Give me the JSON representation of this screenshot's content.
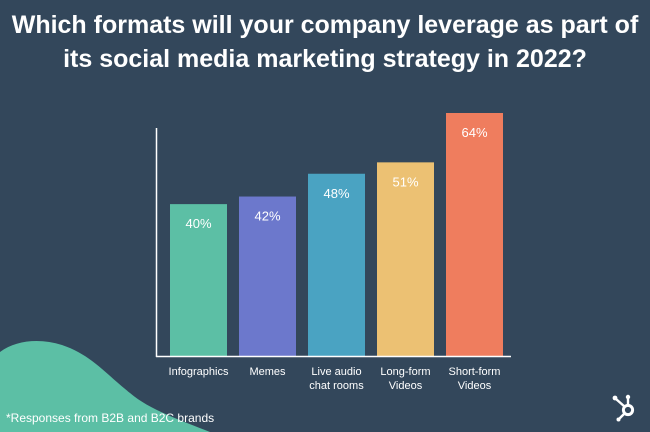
{
  "title": "Which formats will your company leverage as part of its social media marketing strategy in 2022?",
  "footnote": "*Responses from B2B and B2C brands",
  "logo_icon": "hubspot-sprocket-icon",
  "colors": {
    "background": "#33475b",
    "blob": "#5cbfa5",
    "axis": "#ffffff",
    "text": "#ffffff"
  },
  "chart_data": {
    "type": "bar",
    "title": "Which formats will your company leverage as part of its social media marketing strategy in 2022?",
    "xlabel": "",
    "ylabel": "",
    "ylim": [
      0,
      64
    ],
    "grid": false,
    "categories": [
      [
        "Infographics"
      ],
      [
        "Memes"
      ],
      [
        "Live audio",
        "chat rooms"
      ],
      [
        "Long-form",
        "Videos"
      ],
      [
        "Short-form",
        "Videos"
      ]
    ],
    "values": [
      40,
      42,
      48,
      51,
      64
    ],
    "value_labels": [
      "40%",
      "42%",
      "48%",
      "51%",
      "64%"
    ],
    "bar_colors": [
      "#5cbfa5",
      "#6c78cc",
      "#4aa3c2",
      "#ecc173",
      "#ef7d5e"
    ]
  }
}
